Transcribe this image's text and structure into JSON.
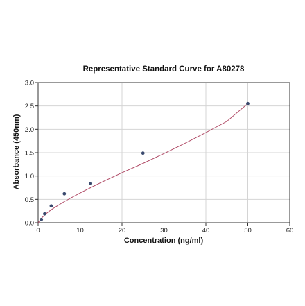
{
  "chart_data": {
    "type": "scatter",
    "title": "Representative Standard Curve for A80278",
    "xlabel": "Concentration (ng/ml)",
    "ylabel": "Absorbance (450nm)",
    "xlim": [
      0,
      60
    ],
    "ylim": [
      0,
      3.0
    ],
    "xticks": [
      0,
      10,
      20,
      30,
      40,
      50,
      60
    ],
    "yticks": [
      0.0,
      0.5,
      1.0,
      1.5,
      2.0,
      2.5,
      3.0
    ],
    "xtick_labels": [
      "0",
      "10",
      "20",
      "30",
      "40",
      "50",
      "60"
    ],
    "ytick_labels": [
      "0.0",
      "0.5",
      "1.0",
      "1.5",
      "2.0",
      "2.5",
      "3.0"
    ],
    "grid": true,
    "legend": false,
    "series": [
      {
        "kind": "points",
        "x": [
          0.78,
          1.56,
          3.125,
          6.25,
          12.5,
          25,
          50
        ],
        "y": [
          0.07,
          0.19,
          0.36,
          0.62,
          0.84,
          1.49,
          2.55
        ],
        "color": "#3a4a6e"
      },
      {
        "kind": "fit-curve",
        "x": [
          0,
          1,
          2,
          3,
          4,
          6,
          8,
          10,
          12.5,
          15,
          20,
          25,
          30,
          35,
          40,
          45,
          50
        ],
        "y": [
          0.0,
          0.115,
          0.2,
          0.27,
          0.33,
          0.44,
          0.54,
          0.635,
          0.75,
          0.86,
          1.07,
          1.27,
          1.48,
          1.7,
          1.93,
          2.17,
          2.55
        ],
        "color": "#b04a66"
      }
    ]
  }
}
